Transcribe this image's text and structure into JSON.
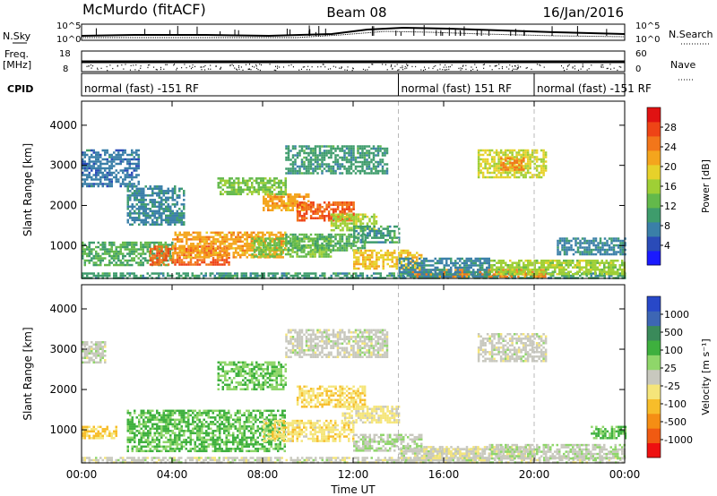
{
  "header": {
    "station": "McMurdo (fitACF)",
    "beam": "Beam 08",
    "date": "16/Jan/2016"
  },
  "status_panel": {
    "nsky_label": "N.Sky",
    "nsearch_label": "N.Search",
    "freq_label": "Freq.",
    "freq_unit": "[MHz]",
    "nave_label": "Nave",
    "cpid_label": "CPID",
    "noise_ticks_left": [
      "10^5",
      "10^0"
    ],
    "noise_ticks_right": [
      "10^5",
      "10^0"
    ],
    "freq_ticks": [
      "18",
      "8"
    ],
    "nave_ticks": [
      "60",
      "0"
    ],
    "cpid_segments": [
      {
        "text": "normal (fast) -151 RF",
        "start_h": 0,
        "end_h": 14.0
      },
      {
        "text": "normal (fast) 151 RF",
        "start_h": 14.0,
        "end_h": 20.0
      },
      {
        "text": "normal (fast) -151 RF",
        "start_h": 20.0,
        "end_h": 24.0
      }
    ]
  },
  "chart_data": [
    {
      "type": "heatmap",
      "title": "",
      "ylabel": "Slant Range [km]",
      "xlabel": "",
      "x_ticks": [
        "00:00",
        "04:00",
        "08:00",
        "12:00",
        "16:00",
        "20:00",
        "00:00"
      ],
      "x_range_hours": [
        0,
        24
      ],
      "y_ticks": [
        "1000",
        "2000",
        "3000",
        "4000"
      ],
      "ylim": [
        180,
        4600
      ],
      "colorbar_label": "Power [dB]",
      "colorbar_ticks": [
        "4",
        "8",
        "12",
        "16",
        "20",
        "24",
        "28"
      ],
      "colorbar_range": [
        0,
        32
      ],
      "colors": [
        "#1a1aff",
        "#2a4bb8",
        "#3a7fa8",
        "#3e9c6c",
        "#63b94b",
        "#9fcf35",
        "#e7d12a",
        "#f4a51d",
        "#f2761a",
        "#ee4416",
        "#e01212"
      ],
      "regions": [
        {
          "t0": 0.0,
          "t1": 24.0,
          "r0": 200,
          "r1": 330,
          "v": 10
        },
        {
          "t0": 14.5,
          "t1": 20.5,
          "r0": 220,
          "r1": 420,
          "v": 24
        },
        {
          "t0": 18.0,
          "t1": 24.0,
          "r0": 300,
          "r1": 650,
          "v": 16
        },
        {
          "t0": 0.0,
          "t1": 4.0,
          "r0": 500,
          "r1": 1100,
          "v": 12
        },
        {
          "t0": 3.0,
          "t1": 6.5,
          "r0": 500,
          "r1": 1000,
          "v": 26
        },
        {
          "t0": 4.0,
          "t1": 9.0,
          "r0": 700,
          "r1": 1350,
          "v": 22
        },
        {
          "t0": 7.5,
          "t1": 11.0,
          "r0": 750,
          "r1": 1200,
          "v": 14
        },
        {
          "t0": 9.0,
          "t1": 12.5,
          "r0": 900,
          "r1": 1300,
          "v": 12
        },
        {
          "t0": 12.0,
          "t1": 15.0,
          "r0": 450,
          "r1": 900,
          "v": 20
        },
        {
          "t0": 14.0,
          "t1": 18.0,
          "r0": 250,
          "r1": 700,
          "v": 8
        },
        {
          "t0": 8.0,
          "t1": 10.0,
          "r0": 1900,
          "r1": 2300,
          "v": 22
        },
        {
          "t0": 9.5,
          "t1": 12.0,
          "r0": 1600,
          "r1": 2100,
          "v": 26
        },
        {
          "t0": 11.0,
          "t1": 13.0,
          "r0": 1400,
          "r1": 1800,
          "v": 16
        },
        {
          "t0": 12.0,
          "t1": 14.0,
          "r0": 1100,
          "r1": 1500,
          "v": 10
        },
        {
          "t0": 6.0,
          "t1": 9.0,
          "r0": 2300,
          "r1": 2700,
          "v": 14
        },
        {
          "t0": 9.0,
          "t1": 13.5,
          "r0": 2800,
          "r1": 3500,
          "v": 10
        },
        {
          "t0": 17.5,
          "t1": 20.5,
          "r0": 2700,
          "r1": 3400,
          "v": 18
        },
        {
          "t0": 18.5,
          "t1": 19.5,
          "r0": 2900,
          "r1": 3200,
          "v": 24
        },
        {
          "t0": 0.0,
          "t1": 2.5,
          "r0": 2500,
          "r1": 3400,
          "v": 7
        },
        {
          "t0": 2.0,
          "t1": 4.5,
          "r0": 1500,
          "r1": 2500,
          "v": 8
        },
        {
          "t0": 21.0,
          "t1": 24.0,
          "r0": 800,
          "r1": 1200,
          "v": 8
        }
      ]
    },
    {
      "type": "heatmap",
      "title": "",
      "ylabel": "Slant Range [km]",
      "xlabel": "Time UT",
      "x_ticks": [
        "00:00",
        "04:00",
        "08:00",
        "12:00",
        "16:00",
        "20:00",
        "00:00"
      ],
      "x_range_hours": [
        0,
        24
      ],
      "y_ticks": [
        "1000",
        "2000",
        "3000",
        "4000"
      ],
      "ylim": [
        180,
        4600
      ],
      "colorbar_label": "Velocity [m s⁻¹]",
      "colorbar_ticks": [
        "1000",
        "500",
        "100",
        "25",
        "-25",
        "-100",
        "-500",
        "-1000"
      ],
      "colorbar_range": [
        -1000,
        1000
      ],
      "colors": [
        "#ee1010",
        "#f05a12",
        "#f58e14",
        "#f7bd2a",
        "#f5e57a",
        "#c8c8be",
        "#8fd66a",
        "#3eb03e",
        "#3a8a5a",
        "#3d66b4",
        "#2848c8"
      ],
      "regions": [
        {
          "t0": 0.0,
          "t1": 24.0,
          "r0": 200,
          "r1": 330,
          "v": 0
        },
        {
          "t0": 0.0,
          "t1": 1.5,
          "r0": 800,
          "r1": 1100,
          "v": -300
        },
        {
          "t0": 2.0,
          "t1": 9.0,
          "r0": 500,
          "r1": 1500,
          "v": 300
        },
        {
          "t0": 8.0,
          "t1": 12.0,
          "r0": 700,
          "r1": 1250,
          "v": -200
        },
        {
          "t0": 9.5,
          "t1": 12.5,
          "r0": 1600,
          "r1": 2100,
          "v": -250
        },
        {
          "t0": 11.5,
          "t1": 14.0,
          "r0": 1200,
          "r1": 1600,
          "v": -150
        },
        {
          "t0": 12.0,
          "t1": 15.0,
          "r0": 500,
          "r1": 900,
          "v": 60
        },
        {
          "t0": 14.0,
          "t1": 18.0,
          "r0": 250,
          "r1": 550,
          "v": 10
        },
        {
          "t0": 15.0,
          "t1": 20.0,
          "r0": 300,
          "r1": 600,
          "v": -80
        },
        {
          "t0": 18.0,
          "t1": 24.0,
          "r0": 300,
          "r1": 650,
          "v": 40
        },
        {
          "t0": 9.0,
          "t1": 13.5,
          "r0": 2800,
          "r1": 3500,
          "v": 5
        },
        {
          "t0": 17.5,
          "t1": 20.5,
          "r0": 2700,
          "r1": 3400,
          "v": 0
        },
        {
          "t0": 6.0,
          "t1": 9.0,
          "r0": 2000,
          "r1": 2700,
          "v": 250
        },
        {
          "t0": 0.0,
          "t1": 1.0,
          "r0": 2700,
          "r1": 3200,
          "v": 10
        },
        {
          "t0": 22.5,
          "t1": 24.0,
          "r0": 800,
          "r1": 1100,
          "v": 300
        }
      ]
    }
  ]
}
